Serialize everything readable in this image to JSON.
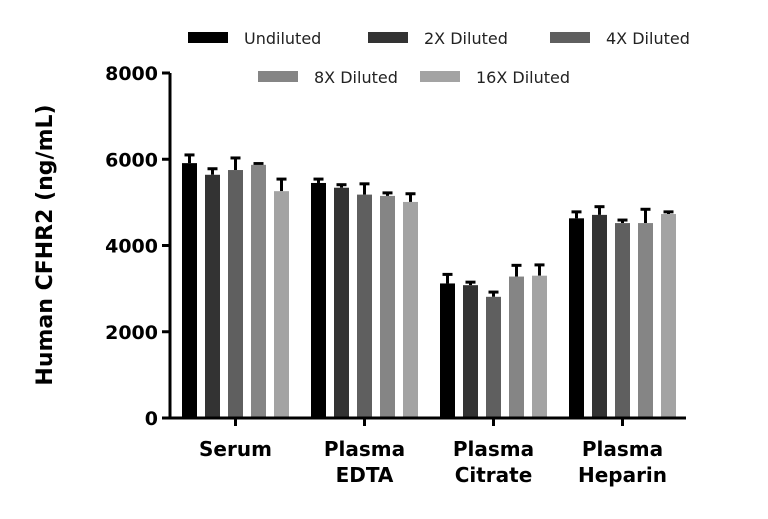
{
  "chart_data": {
    "type": "bar",
    "title": "",
    "xlabel": "",
    "ylabel": "Human CFHR2 (ng/mL)",
    "ylim": [
      0,
      8000
    ],
    "yticks": [
      "0",
      "2000",
      "4000",
      "6000",
      "8000"
    ],
    "categories": [
      [
        "Serum"
      ],
      [
        "Plasma",
        "EDTA"
      ],
      [
        "Plasma",
        "Citrate"
      ],
      [
        "Plasma",
        "Heparin"
      ]
    ],
    "legend_placement": "top",
    "grid": false,
    "series": [
      {
        "name": "Undiluted",
        "color": "#000000",
        "values": [
          5910,
          5450,
          3120,
          4630
        ],
        "errors": [
          190,
          90,
          210,
          150
        ]
      },
      {
        "name": "2X Diluted",
        "color": "#333333",
        "values": [
          5640,
          5340,
          3080,
          4710
        ],
        "errors": [
          140,
          70,
          70,
          190
        ]
      },
      {
        "name": "4X Diluted",
        "color": "#5f5f5f",
        "values": [
          5750,
          5180,
          2810,
          4520
        ],
        "errors": [
          280,
          250,
          110,
          70
        ]
      },
      {
        "name": "8X Diluted",
        "color": "#858585",
        "values": [
          5870,
          5150,
          3280,
          4520
        ],
        "errors": [
          30,
          70,
          260,
          320
        ]
      },
      {
        "name": "16X Diluted",
        "color": "#a3a3a3",
        "values": [
          5260,
          5010,
          3300,
          4730
        ],
        "errors": [
          280,
          190,
          250,
          50
        ]
      }
    ]
  }
}
